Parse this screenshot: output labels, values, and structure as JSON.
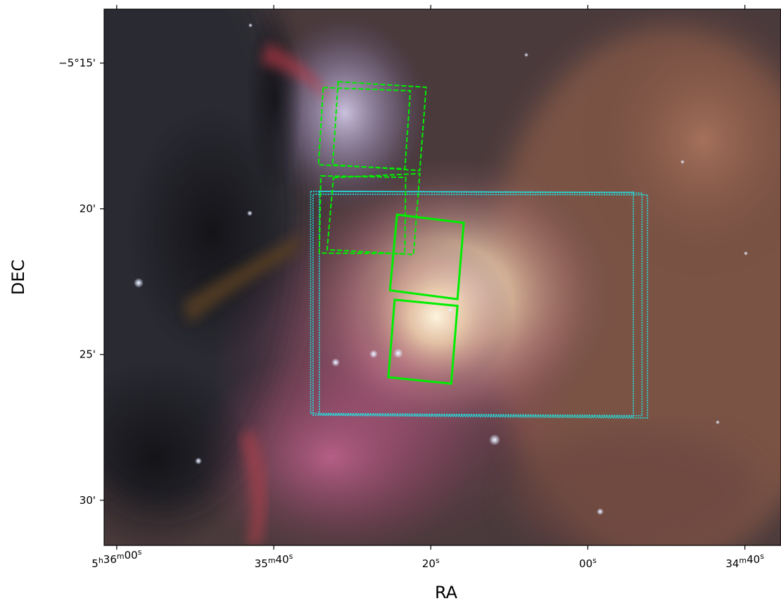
{
  "chart_data": {
    "type": "sky-image-with-footprints",
    "title": "",
    "xlabel": "RA",
    "ylabel": "DEC",
    "x_ticks": [
      {
        "value_sec": 360,
        "label_pre": "5",
        "sup1": "h",
        "mid": "36",
        "sup2": "m",
        "post": "00",
        "sup3": "s"
      },
      {
        "value_sec": 340,
        "label_pre": "35",
        "sup1": "m",
        "mid": "40",
        "sup2": "s",
        "post": "",
        "sup3": ""
      },
      {
        "value_sec": 320,
        "label_pre": "20",
        "sup1": "s",
        "mid": "",
        "sup2": "",
        "post": "",
        "sup3": ""
      },
      {
        "value_sec": 300,
        "label_pre": "00",
        "sup1": "s",
        "mid": "",
        "sup2": "",
        "post": "",
        "sup3": ""
      },
      {
        "value_sec": 280,
        "label_pre": "34",
        "sup1": "m",
        "mid": "40",
        "sup2": "s",
        "post": "",
        "sup3": ""
      }
    ],
    "y_ticks": [
      {
        "value_arcmin": -15,
        "label": "−5°15'"
      },
      {
        "value_arcmin": -20,
        "label": "20'"
      },
      {
        "value_arcmin": -25,
        "label": "25'"
      },
      {
        "value_arcmin": -30,
        "label": "30'"
      }
    ],
    "xlim_sec": [
      361.6,
      275.4
    ],
    "ylim_arcmin": [
      -13.15,
      -31.55
    ],
    "footprints_green_dashed": [
      [
        [
          333.7,
          -15.84
        ],
        [
          322.6,
          -15.95
        ],
        [
          323.3,
          -18.63
        ],
        [
          334.3,
          -18.49
        ]
      ],
      [
        [
          331.8,
          -15.64
        ],
        [
          320.6,
          -15.83
        ],
        [
          321.4,
          -18.69
        ],
        [
          332.5,
          -18.49
        ]
      ],
      [
        [
          334.0,
          -18.87
        ],
        [
          323.2,
          -18.92
        ],
        [
          323.3,
          -21.54
        ],
        [
          334.2,
          -21.52
        ]
      ],
      [
        [
          332.4,
          -18.93
        ],
        [
          321.4,
          -18.79
        ],
        [
          322.2,
          -21.57
        ],
        [
          333.2,
          -21.4
        ]
      ]
    ],
    "footprints_green_solid": [
      [
        [
          324.3,
          -20.2
        ],
        [
          315.8,
          -20.48
        ],
        [
          316.6,
          -23.1
        ],
        [
          325.2,
          -22.8
        ]
      ],
      [
        [
          324.6,
          -23.12
        ],
        [
          316.6,
          -23.33
        ],
        [
          317.4,
          -26.0
        ],
        [
          325.4,
          -25.78
        ]
      ]
    ],
    "footprints_cyan_dotted": [
      [
        [
          335.3,
          -19.4
        ],
        [
          293.1,
          -19.46
        ],
        [
          293.1,
          -27.1
        ],
        [
          335.3,
          -27.02
        ]
      ],
      [
        [
          334.2,
          -19.4
        ],
        [
          294.2,
          -19.43
        ],
        [
          294.2,
          -27.13
        ],
        [
          334.2,
          -27.05
        ]
      ],
      [
        [
          335.0,
          -19.5
        ],
        [
          292.4,
          -19.52
        ],
        [
          292.4,
          -27.18
        ],
        [
          335.0,
          -27.08
        ]
      ]
    ],
    "colors": {
      "green": "#00ee00",
      "cyan": "#22e5e5",
      "axis": "#000000"
    }
  }
}
